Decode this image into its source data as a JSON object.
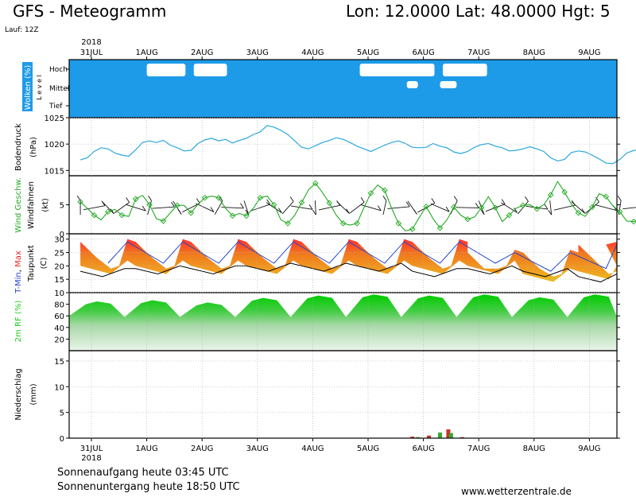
{
  "header": {
    "title": "GFS - Meteogramm",
    "location": "Lon: 12.0000 Lat: 48.0000 Hgt: 5",
    "run": "Lauf: 12Z"
  },
  "footer": {
    "sunrise": "Sonnenaufgang heute 03:45 UTC",
    "sunset": "Sonnenuntergang heute 18:50 UTC",
    "website": "www.wetterzentrale.de"
  },
  "colors": {
    "cloud_blue": "#1e9be8",
    "pressure_line": "#2aa7dc",
    "wind_speed": "#22aa22",
    "tmax": "#ee2222",
    "tmin": "#2244cc",
    "rh_green": "#22cc22",
    "precip_green": "#33aa33",
    "precip_red": "#cc3322"
  },
  "chart_data": [
    {
      "type": "heatmap",
      "panel": "clouds",
      "ylabel": "Wolken (%)",
      "ylabel2": "L e v e l",
      "levels": [
        "Hoch",
        "Mittel",
        "Tief"
      ],
      "x_ticks": [
        "31JUL",
        "1AUG",
        "2AUG",
        "3AUG",
        "4AUG",
        "5AUG",
        "6AUG",
        "7AUG",
        "8AUG",
        "9AUG"
      ],
      "year": "2018",
      "clear_periods": [
        {
          "level": "Hoch",
          "from_day": 1.0,
          "to_day": 1.7
        },
        {
          "level": "Hoch",
          "from_day": 1.85,
          "to_day": 2.45
        },
        {
          "level": "Hoch",
          "from_day": 4.85,
          "to_day": 6.2
        },
        {
          "level": "Hoch",
          "from_day": 6.35,
          "to_day": 7.15
        },
        {
          "level": "Mittel",
          "from_day": 5.7,
          "to_day": 5.9
        },
        {
          "level": "Mittel",
          "from_day": 6.3,
          "to_day": 6.6
        }
      ]
    },
    {
      "type": "line",
      "panel": "pressure",
      "ylabel": "Bodendruck",
      "unit": "(hPa)",
      "ylim": [
        1014,
        1025
      ],
      "y_ticks": [
        1015,
        1020,
        1025
      ],
      "x_start_day": -0.2,
      "x_step_days": 0.125,
      "series": [
        {
          "values": [
            1017,
            1017.4,
            1018.6,
            1019.3,
            1019.1,
            1018.3,
            1017.9,
            1017.7,
            1018.9,
            1020.3,
            1020.6,
            1020.3,
            1020.7,
            1019.8,
            1019.3,
            1018.7,
            1018.8,
            1020.1,
            1020.8,
            1021.1,
            1020.6,
            1020.9,
            1020.2,
            1020.7,
            1021.1,
            1021.8,
            1022.3,
            1023.5,
            1023.2,
            1022.6,
            1021.8,
            1020.6,
            1019.4,
            1019.1,
            1019.7,
            1020.3,
            1020.7,
            1021.2,
            1020.9,
            1020.3,
            1019.6,
            1019.1,
            1018.6,
            1019.2,
            1019.8,
            1020.3,
            1020.6,
            1020.1,
            1019.4,
            1019.3,
            1019.4,
            1020.1,
            1019.6,
            1019.3,
            1018.5,
            1018.2,
            1018.6,
            1019.4,
            1019.9,
            1020.1,
            1019.6,
            1019.3,
            1018.7,
            1018.8,
            1019.1,
            1019.5,
            1019.1,
            1018.6,
            1017.4,
            1016.8,
            1017.1,
            1018.4,
            1018.7,
            1018.5,
            1017.9,
            1017.2,
            1016.4,
            1016.3,
            1017.1,
            1018.3,
            1018.8,
            1018.9,
            1018.7,
            1018.2,
            1018.1,
            1017.6
          ]
        }
      ]
    },
    {
      "type": "line",
      "panel": "wind",
      "ylabel": "Wind Geschw.",
      "ylabel_line2": "Windfahnen",
      "unit": "(kt)",
      "ylim": [
        0,
        10
      ],
      "y_ticks": [
        0,
        5
      ],
      "x_start_day": -0.2,
      "x_step_days": 0.125,
      "series": [
        {
          "name": "Wind Geschw.",
          "values": [
            5.5,
            4.4,
            3.2,
            2.4,
            3.8,
            4.2,
            3.2,
            3.0,
            6.0,
            6.6,
            5.0,
            2.6,
            2.2,
            3.6,
            4.9,
            4.9,
            3.6,
            5.1,
            6.2,
            6.5,
            6.2,
            4.4,
            3.1,
            3.5,
            3.1,
            4.4,
            6.2,
            6.5,
            5.0,
            2.4,
            1.8,
            3.2,
            5.4,
            7.6,
            8.7,
            7.1,
            5.3,
            3.2,
            1.8,
            1.5,
            1.8,
            4.5,
            7.0,
            8.4,
            7.5,
            4.4,
            1.8,
            0.5,
            0.8,
            2.8,
            4.7,
            2.6,
            1.0,
            2.4,
            4.6,
            3.2,
            2.5,
            2.9,
            4.5,
            6.4,
            4.5,
            2.1,
            3.2,
            4.4,
            4.9,
            5.0,
            4.3,
            5.0,
            6.7,
            9.0,
            7.2,
            5.1,
            3.6,
            3.0,
            4.6,
            6.9,
            6.4,
            4.8,
            3.8,
            2.2,
            2.1,
            2.5,
            2.5,
            3.9,
            5.0,
            5.4
          ]
        }
      ]
    },
    {
      "type": "area",
      "panel": "temperature",
      "ylabel_parts": [
        "T-Min",
        "Max"
      ],
      "ylabel_line2": "Taupunkt",
      "unit": "(C)",
      "ylim": [
        10,
        32
      ],
      "y_ticks": [
        10,
        15,
        20,
        25,
        30
      ],
      "days": [
        -0.2,
        0.8,
        1.8,
        2.8,
        3.8,
        4.8,
        5.8,
        6.8,
        7.8,
        8.8
      ],
      "series": [
        {
          "name": "T-Max",
          "values": [
            30,
            30,
            30,
            30,
            30,
            30,
            30,
            26,
            26,
            29
          ]
        },
        {
          "name": "T-Min",
          "values": [
            17,
            17,
            17,
            17,
            17,
            17,
            17,
            17,
            14,
            15
          ]
        },
        {
          "name": "Taupunkt",
          "values": [
            19,
            20,
            20,
            21,
            21,
            21,
            19,
            20,
            19,
            17
          ]
        }
      ]
    },
    {
      "type": "area",
      "panel": "humidity",
      "ylabel": "2m RF (%)",
      "ylim": [
        0,
        100
      ],
      "y_ticks": [
        20,
        40,
        60,
        80
      ],
      "days": [
        -0.2,
        0.8,
        1.8,
        2.8,
        3.8,
        4.8,
        5.8,
        6.8,
        7.8,
        8.8
      ],
      "series": [
        {
          "name": "2m RF",
          "values": [
            85,
            87,
            83,
            91,
            95,
            97,
            95,
            97,
            92,
            97
          ]
        }
      ]
    },
    {
      "type": "bar",
      "panel": "precipitation",
      "ylabel": "Niederschlag",
      "unit": "(mm)",
      "ylim": [
        0,
        17
      ],
      "y_ticks": [
        0,
        5,
        10,
        15
      ],
      "x_ticks": [
        "31JUL",
        "1AUG",
        "2AUG",
        "3AUG",
        "4AUG",
        "5AUG",
        "6AUG",
        "7AUG",
        "8AUG",
        "9AUG"
      ],
      "year": "2018",
      "bars": [
        {
          "day": 5.8,
          "value": 0.3,
          "color": "red"
        },
        {
          "day": 5.9,
          "value": 0.2,
          "color": "green"
        },
        {
          "day": 6.1,
          "value": 0.5,
          "color": "red"
        },
        {
          "day": 6.3,
          "value": 1.1,
          "color": "green"
        },
        {
          "day": 6.45,
          "value": 1.7,
          "color": "red"
        },
        {
          "day": 6.5,
          "value": 1.0,
          "color": "green"
        },
        {
          "day": 6.7,
          "value": 0.2,
          "color": "red"
        }
      ]
    }
  ]
}
